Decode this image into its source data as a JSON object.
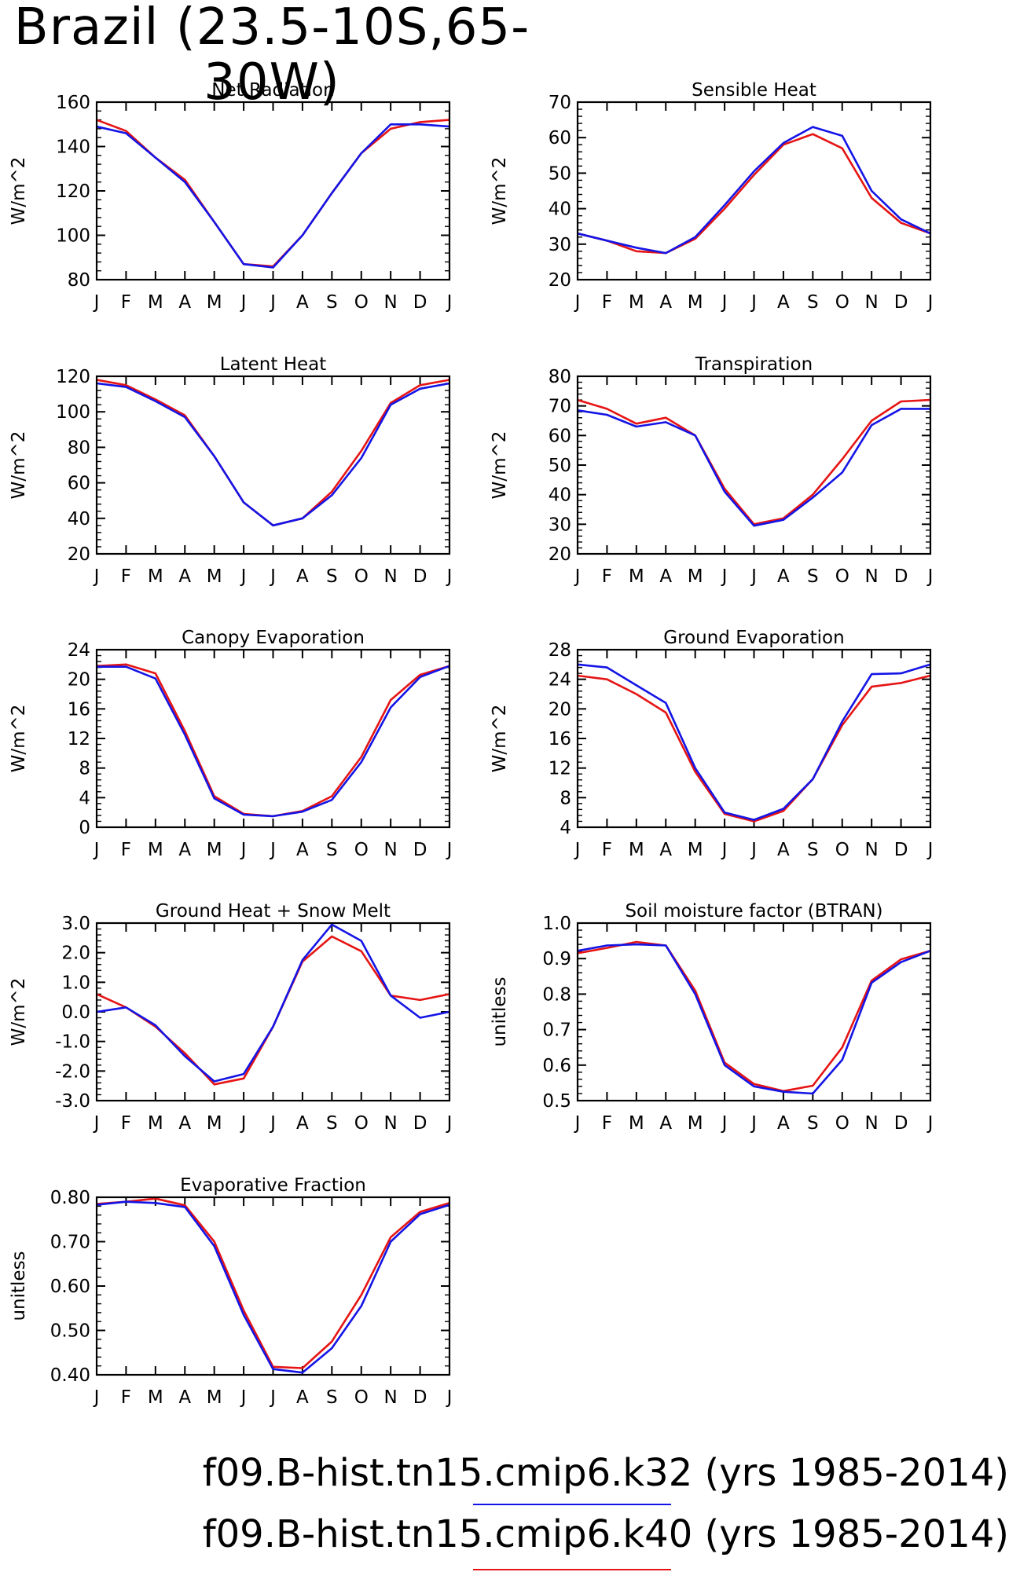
{
  "title": "Brazil (23.5-10S,65-30W)",
  "colors": {
    "series_a": "#1414e6",
    "series_b": "#e61414",
    "frame": "#000000"
  },
  "legend": [
    {
      "text": "f09.B-hist.tn15.cmip6.k32 (yrs 1985-2014)",
      "color": "#1414e6"
    },
    {
      "text": "f09.B-hist.tn15.cmip6.k40 (yrs 1985-2014)",
      "color": "#e61414"
    }
  ],
  "months": [
    "J",
    "F",
    "M",
    "A",
    "M",
    "J",
    "J",
    "A",
    "S",
    "O",
    "N",
    "D",
    "J"
  ],
  "chart_data": [
    {
      "type": "line",
      "title": "Net Radiation",
      "ylabel": "W/m^2",
      "ylim": [
        80,
        160
      ],
      "yticks": [
        80,
        100,
        120,
        140,
        160
      ],
      "ytick_labels": [
        "80",
        "100",
        "120",
        "140",
        "160"
      ],
      "series": [
        {
          "color": "#e61414",
          "values": [
            152,
            147,
            135,
            125,
            106,
            87,
            86,
            100,
            119,
            137,
            148,
            151,
            152
          ]
        },
        {
          "color": "#1414e6",
          "values": [
            149,
            146,
            135,
            124,
            106,
            87,
            85.5,
            100,
            119,
            137,
            150,
            150,
            149
          ]
        }
      ]
    },
    {
      "type": "line",
      "title": "Sensible Heat",
      "ylabel": "W/m^2",
      "ylim": [
        20,
        70
      ],
      "yticks": [
        20,
        30,
        40,
        50,
        60,
        70
      ],
      "ytick_labels": [
        "20",
        "30",
        "40",
        "50",
        "60",
        "70"
      ],
      "series": [
        {
          "color": "#e61414",
          "values": [
            33,
            31,
            28,
            27.5,
            31.5,
            40,
            49.5,
            58,
            61,
            57,
            43,
            36,
            33
          ]
        },
        {
          "color": "#1414e6",
          "values": [
            33,
            31,
            29,
            27.5,
            32,
            41,
            50.5,
            58.5,
            63,
            60.5,
            45,
            37,
            33
          ]
        }
      ]
    },
    {
      "type": "line",
      "title": "Latent Heat",
      "ylabel": "W/m^2",
      "ylim": [
        20,
        120
      ],
      "yticks": [
        20,
        40,
        60,
        80,
        100,
        120
      ],
      "ytick_labels": [
        "20",
        "40",
        "60",
        "80",
        "100",
        "120"
      ],
      "series": [
        {
          "color": "#e61414",
          "values": [
            118,
            115,
            107,
            98,
            75,
            49,
            36,
            40,
            55,
            78,
            105,
            115,
            118
          ]
        },
        {
          "color": "#1414e6",
          "values": [
            116,
            114,
            106,
            97,
            75,
            49,
            36,
            40,
            53,
            74,
            104,
            113,
            116
          ]
        }
      ]
    },
    {
      "type": "line",
      "title": "Transpiration",
      "ylabel": "W/m^2",
      "ylim": [
        20,
        80
      ],
      "yticks": [
        20,
        30,
        40,
        50,
        60,
        70,
        80
      ],
      "ytick_labels": [
        "20",
        "30",
        "40",
        "50",
        "60",
        "70",
        "80"
      ],
      "series": [
        {
          "color": "#e61414",
          "values": [
            72,
            69,
            64,
            66,
            60,
            42,
            30,
            32,
            40,
            52,
            65,
            71.5,
            72
          ]
        },
        {
          "color": "#1414e6",
          "values": [
            68.5,
            67,
            63,
            64.5,
            60,
            41,
            29.5,
            31.5,
            39,
            47.5,
            63.5,
            69,
            69
          ]
        }
      ]
    },
    {
      "type": "line",
      "title": "Canopy Evaporation",
      "ylabel": "W/m^2",
      "ylim": [
        0,
        24
      ],
      "yticks": [
        0,
        4,
        8,
        12,
        16,
        20,
        24
      ],
      "ytick_labels": [
        "0",
        "4",
        "8",
        "12",
        "16",
        "20",
        "24"
      ],
      "series": [
        {
          "color": "#e61414",
          "values": [
            21.8,
            22,
            20.8,
            13,
            4.2,
            1.8,
            1.5,
            2.2,
            4.2,
            9.5,
            17.2,
            20.6,
            21.8
          ]
        },
        {
          "color": "#1414e6",
          "values": [
            21.7,
            21.7,
            20.1,
            12.5,
            3.9,
            1.7,
            1.5,
            2.1,
            3.7,
            8.8,
            16.2,
            20.3,
            21.8
          ]
        }
      ]
    },
    {
      "type": "line",
      "title": "Ground Evaporation",
      "ylabel": "W/m^2",
      "ylim": [
        4,
        28
      ],
      "yticks": [
        4,
        8,
        12,
        16,
        20,
        24,
        28
      ],
      "ytick_labels": [
        "4",
        "8",
        "12",
        "16",
        "20",
        "24",
        "28"
      ],
      "series": [
        {
          "color": "#e61414",
          "values": [
            24.5,
            24,
            22,
            19.5,
            11.5,
            5.8,
            4.8,
            6.2,
            10.5,
            17.8,
            23,
            23.5,
            24.5
          ]
        },
        {
          "color": "#1414e6",
          "values": [
            26,
            25.6,
            23.2,
            20.8,
            12,
            6,
            5,
            6.5,
            10.5,
            18.3,
            24.7,
            24.8,
            26
          ]
        }
      ]
    },
    {
      "type": "line",
      "title": "Ground Heat + Snow Melt",
      "ylabel": "W/m^2",
      "ylim": [
        -3,
        3
      ],
      "yticks": [
        -3,
        -2,
        -1,
        0,
        1,
        2,
        3
      ],
      "ytick_labels": [
        "-3.0",
        "-2.0",
        "-1.0",
        "0.0",
        "1.0",
        "2.0",
        "3.0"
      ],
      "series": [
        {
          "color": "#e61414",
          "values": [
            0.6,
            0.15,
            -0.5,
            -1.4,
            -2.45,
            -2.25,
            -0.5,
            1.7,
            2.55,
            2.05,
            0.55,
            0.4,
            0.6
          ]
        },
        {
          "color": "#1414e6",
          "values": [
            0,
            0.15,
            -0.45,
            -1.5,
            -2.35,
            -2.1,
            -0.5,
            1.75,
            2.95,
            2.4,
            0.55,
            -0.2,
            0
          ]
        }
      ]
    },
    {
      "type": "line",
      "title": "Soil moisture factor (BTRAN)",
      "ylabel": "unitless",
      "ylim": [
        0.5,
        1.0
      ],
      "yticks": [
        0.5,
        0.6,
        0.7,
        0.8,
        0.9,
        1.0
      ],
      "ytick_labels": [
        "0.5",
        "0.6",
        "0.7",
        "0.8",
        "0.9",
        "1.0"
      ],
      "series": [
        {
          "color": "#e61414",
          "values": [
            0.915,
            0.93,
            0.947,
            0.937,
            0.81,
            0.607,
            0.547,
            0.527,
            0.542,
            0.65,
            0.838,
            0.898,
            0.922
          ]
        },
        {
          "color": "#1414e6",
          "values": [
            0.922,
            0.937,
            0.94,
            0.937,
            0.8,
            0.6,
            0.54,
            0.525,
            0.52,
            0.615,
            0.832,
            0.89,
            0.922
          ]
        }
      ]
    },
    {
      "type": "line",
      "title": "Evaporative Fraction",
      "ylabel": "unitless",
      "ylim": [
        0.4,
        0.8
      ],
      "yticks": [
        0.4,
        0.5,
        0.6,
        0.7,
        0.8
      ],
      "ytick_labels": [
        "0.40",
        "0.50",
        "0.60",
        "0.70",
        "0.80"
      ],
      "series": [
        {
          "color": "#e61414",
          "values": [
            0.785,
            0.79,
            0.797,
            0.782,
            0.7,
            0.545,
            0.418,
            0.415,
            0.475,
            0.58,
            0.71,
            0.767,
            0.787
          ]
        },
        {
          "color": "#1414e6",
          "values": [
            0.783,
            0.79,
            0.787,
            0.778,
            0.69,
            0.535,
            0.413,
            0.405,
            0.46,
            0.555,
            0.7,
            0.762,
            0.783
          ]
        }
      ]
    }
  ]
}
